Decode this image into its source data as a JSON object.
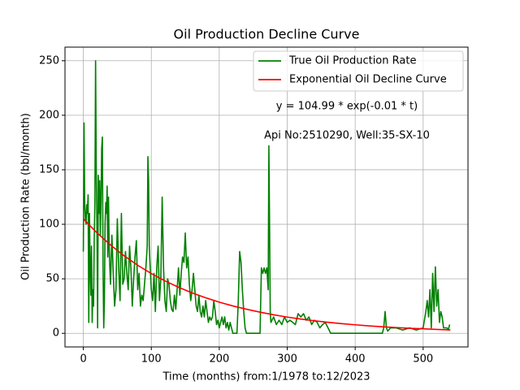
{
  "chart_data": {
    "type": "line",
    "title": "Oil Production Decline Curve",
    "xlabel": "Time (months) from:1/1978 to:12/2023",
    "ylabel": "Oil Production Rate (bbl/month)",
    "annotations": [
      "y = 104.99 * exp(-0.01 * t)",
      "Api No:2510290, Well:35-SX-10"
    ],
    "xlim": [
      -27,
      566
    ],
    "ylim": [
      -12.5,
      262.5
    ],
    "xticks": [
      0,
      100,
      200,
      300,
      400,
      500
    ],
    "yticks": [
      0,
      50,
      100,
      150,
      200,
      250
    ],
    "grid": true,
    "legend": "upper right",
    "series": [
      {
        "name": "True Oil Production Rate",
        "color": "#008000",
        "x": [
          0,
          1,
          2,
          3,
          4,
          5,
          6,
          7,
          8,
          9,
          10,
          11,
          12,
          13,
          14,
          15,
          16,
          17,
          18,
          19,
          20,
          21,
          22,
          23,
          24,
          25,
          26,
          27,
          28,
          29,
          30,
          31,
          32,
          33,
          34,
          35,
          36,
          37,
          38,
          39,
          40,
          42,
          44,
          46,
          48,
          50,
          52,
          54,
          56,
          58,
          60,
          62,
          64,
          66,
          68,
          70,
          72,
          74,
          76,
          78,
          80,
          82,
          84,
          86,
          88,
          90,
          92,
          94,
          95,
          96,
          97,
          98,
          100,
          102,
          104,
          106,
          108,
          110,
          112,
          114,
          116,
          118,
          120,
          122,
          124,
          126,
          128,
          130,
          132,
          134,
          136,
          138,
          140,
          142,
          144,
          146,
          148,
          150,
          152,
          154,
          156,
          158,
          160,
          162,
          164,
          166,
          168,
          170,
          172,
          174,
          176,
          178,
          180,
          182,
          184,
          186,
          188,
          190,
          192,
          194,
          196,
          198,
          200,
          202,
          204,
          206,
          208,
          210,
          212,
          214,
          216,
          218,
          220,
          226,
          228,
          230,
          232,
          234,
          236,
          238,
          240,
          260,
          262,
          264,
          266,
          268,
          270,
          272,
          273,
          274,
          275,
          276,
          280,
          284,
          288,
          292,
          296,
          300,
          304,
          308,
          312,
          316,
          320,
          324,
          328,
          332,
          336,
          340,
          344,
          348,
          352,
          356,
          360,
          364,
          440,
          442,
          444,
          446,
          448,
          452,
          460,
          470,
          480,
          490,
          500,
          504,
          506,
          508,
          510,
          512,
          514,
          516,
          518,
          520,
          522,
          524,
          526,
          528,
          530,
          535,
          537,
          539
        ],
        "values": [
          75,
          193,
          120,
          105,
          100,
          118,
          110,
          127,
          10,
          110,
          60,
          35,
          80,
          10,
          40,
          25,
          85,
          120,
          250,
          150,
          100,
          5,
          145,
          110,
          140,
          90,
          120,
          170,
          180,
          60,
          5,
          30,
          100,
          120,
          110,
          135,
          70,
          125,
          80,
          60,
          45,
          90,
          55,
          25,
          40,
          105,
          60,
          30,
          110,
          45,
          50,
          75,
          55,
          40,
          80,
          60,
          25,
          50,
          70,
          85,
          40,
          55,
          25,
          35,
          30,
          45,
          60,
          80,
          162,
          140,
          80,
          65,
          40,
          30,
          55,
          20,
          60,
          80,
          30,
          50,
          125,
          60,
          30,
          20,
          50,
          45,
          30,
          22,
          20,
          35,
          22,
          40,
          60,
          35,
          55,
          70,
          65,
          92,
          60,
          70,
          45,
          30,
          40,
          55,
          40,
          25,
          20,
          35,
          20,
          15,
          25,
          15,
          30,
          20,
          10,
          15,
          12,
          15,
          30,
          20,
          8,
          12,
          5,
          10,
          15,
          8,
          15,
          5,
          10,
          3,
          10,
          5,
          0,
          0,
          30,
          75,
          65,
          40,
          20,
          5,
          0,
          0,
          60,
          55,
          60,
          55,
          60,
          40,
          172,
          100,
          20,
          10,
          15,
          8,
          12,
          8,
          15,
          10,
          12,
          10,
          8,
          18,
          15,
          18,
          12,
          15,
          8,
          12,
          10,
          5,
          8,
          10,
          5,
          0,
          0,
          5,
          20,
          5,
          2,
          5,
          5,
          3,
          5,
          3,
          5,
          20,
          30,
          15,
          40,
          5,
          55,
          20,
          61,
          25,
          40,
          10,
          20,
          15,
          5,
          5,
          3,
          8
        ]
      },
      {
        "name": "Exponential Oil Decline Curve",
        "color": "#ff0000",
        "x": [
          0,
          20,
          40,
          60,
          80,
          100,
          120,
          140,
          160,
          180,
          200,
          220,
          240,
          260,
          280,
          300,
          320,
          340,
          360,
          380,
          400,
          420,
          440,
          460,
          480,
          500,
          520,
          540
        ],
        "values": [
          105,
          92.2,
          81.0,
          71.1,
          62.4,
          54.8,
          48.1,
          42.3,
          37.1,
          32.6,
          28.6,
          25.1,
          22.1,
          19.4,
          17.0,
          14.9,
          13.1,
          11.5,
          10.1,
          8.9,
          7.8,
          6.8,
          6.0,
          5.3,
          4.6,
          4.1,
          3.6,
          3.1
        ]
      }
    ]
  }
}
